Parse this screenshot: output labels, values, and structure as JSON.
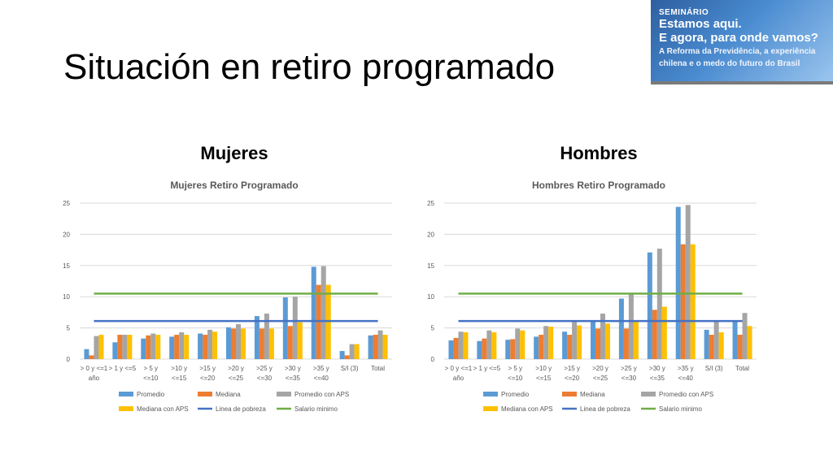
{
  "slide": {
    "title": "Situación en retiro programado",
    "banner": {
      "tag": "SEMINÁRIO",
      "headline": [
        "Estamos aqui.",
        "E agora, para onde vamos?"
      ],
      "subtitle": [
        "A Reforma da Previdência, a experiência",
        "chilena e o medo do futuro do Brasil"
      ]
    },
    "panels": {
      "left": "Mujeres",
      "right": "Hombres"
    }
  },
  "colors": {
    "Promedio": "#5b9bd5",
    "Mediana": "#ed7d31",
    "Promedio con APS": "#a5a5a5",
    "Mediana con APS": "#ffc000",
    "Linea de pobreza": "#4472c4",
    "Salario minimo": "#70ad47"
  },
  "chart_data": [
    {
      "type": "bar",
      "title": "Mujeres Retiro Programado",
      "categories": [
        [
          "> 0 y <=1",
          "año"
        ],
        [
          "> 1 y <=5"
        ],
        [
          "> 5 y",
          "<=10"
        ],
        [
          ">10 y",
          "<=15"
        ],
        [
          ">15 y",
          "<=20"
        ],
        [
          ">20 y",
          "<=25"
        ],
        [
          ">25 y",
          "<=30"
        ],
        [
          ">30 y",
          "<=35"
        ],
        [
          ">35 y",
          "<=40"
        ],
        [
          "S/I (3)"
        ],
        [
          "Total"
        ]
      ],
      "ylim": [
        0,
        25
      ],
      "yticks": [
        0,
        5,
        10,
        15,
        20,
        25
      ],
      "grid": true,
      "legend": "bottom",
      "series": [
        {
          "name": "Promedio",
          "values": [
            1.6,
            2.7,
            3.3,
            3.6,
            4.1,
            5.1,
            6.9,
            9.9,
            14.8,
            1.3,
            3.8
          ]
        },
        {
          "name": "Mediana",
          "values": [
            0.6,
            3.9,
            3.8,
            3.9,
            3.9,
            4.9,
            4.9,
            5.3,
            11.9,
            0.6,
            3.9
          ]
        },
        {
          "name": "Promedio con APS",
          "values": [
            3.7,
            3.9,
            4.1,
            4.3,
            4.7,
            5.6,
            7.3,
            10.0,
            14.9,
            2.4,
            4.6
          ]
        },
        {
          "name": "Mediana con APS",
          "values": [
            3.9,
            3.9,
            3.9,
            3.9,
            4.4,
            4.9,
            4.9,
            5.9,
            11.9,
            2.4,
            3.9
          ]
        }
      ],
      "lines": [
        {
          "name": "Linea de pobreza",
          "value": 6.1
        },
        {
          "name": "Salario minimo",
          "value": 10.5
        }
      ]
    },
    {
      "type": "bar",
      "title": "Hombres Retiro Programado",
      "categories": [
        [
          "> 0 y <=1",
          "año"
        ],
        [
          "> 1 y <=5"
        ],
        [
          "> 5 y",
          "<=10"
        ],
        [
          ">10 y",
          "<=15"
        ],
        [
          ">15 y",
          "<=20"
        ],
        [
          ">20 y",
          "<=25"
        ],
        [
          ">25 y",
          "<=30"
        ],
        [
          ">30 y",
          "<=35"
        ],
        [
          ">35 y",
          "<=40"
        ],
        [
          "S/I (3)"
        ],
        [
          "Total"
        ]
      ],
      "ylim": [
        0,
        25
      ],
      "yticks": [
        0,
        5,
        10,
        15,
        20,
        25
      ],
      "grid": true,
      "legend": "bottom",
      "series": [
        {
          "name": "Promedio",
          "values": [
            3.0,
            2.9,
            3.1,
            3.6,
            4.4,
            6.1,
            9.7,
            17.1,
            24.4,
            4.7,
            6.0
          ]
        },
        {
          "name": "Mediana",
          "values": [
            3.4,
            3.3,
            3.2,
            3.9,
            3.9,
            4.9,
            4.9,
            7.9,
            18.4,
            3.9,
            3.9
          ]
        },
        {
          "name": "Promedio con APS",
          "values": [
            4.4,
            4.6,
            4.9,
            5.3,
            6.0,
            7.3,
            10.5,
            17.7,
            24.7,
            6.0,
            7.4
          ]
        },
        {
          "name": "Mediana con APS",
          "values": [
            4.3,
            4.3,
            4.6,
            5.2,
            5.4,
            5.7,
            6.0,
            8.4,
            18.4,
            4.3,
            5.3
          ]
        }
      ],
      "lines": [
        {
          "name": "Linea de pobreza",
          "value": 6.1
        },
        {
          "name": "Salario minimo",
          "value": 10.5
        }
      ]
    }
  ]
}
